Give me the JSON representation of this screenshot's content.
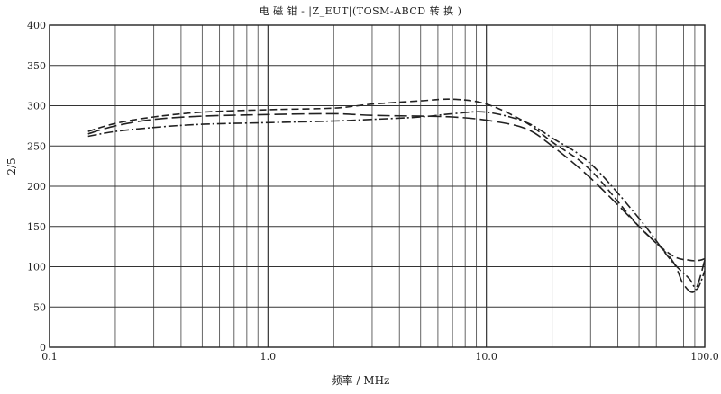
{
  "chart_data": {
    "type": "line",
    "title": "电 磁 钳 - |Z_EUT|(TOSM-ABCD      转 换 )",
    "xlabel": "频率 / MHz",
    "ylabel": "2/5",
    "x_scale": "log",
    "xlim": [
      0.1,
      100.0
    ],
    "ylim": [
      0,
      400
    ],
    "grid": true,
    "x_ticks": [
      {
        "value": 0.1,
        "label": "0.1"
      },
      {
        "value": 1.0,
        "label": "1.0"
      },
      {
        "value": 10.0,
        "label": "10.0"
      },
      {
        "value": 100.0,
        "label": "100.0"
      }
    ],
    "y_ticks": [
      {
        "value": 0,
        "label": "0"
      },
      {
        "value": 50,
        "label": "50"
      },
      {
        "value": 100,
        "label": "100"
      },
      {
        "value": 150,
        "label": "150"
      },
      {
        "value": 200,
        "label": "200"
      },
      {
        "value": 250,
        "label": "250"
      },
      {
        "value": 300,
        "label": "300"
      },
      {
        "value": 350,
        "label": "350"
      },
      {
        "value": 400,
        "label": "400"
      }
    ],
    "series": [
      {
        "dash": "dash",
        "color": "#222222",
        "x": [
          0.15,
          0.2,
          0.3,
          0.5,
          1.0,
          2.0,
          3.0,
          5.0,
          7.0,
          10.0,
          15.0,
          20.0,
          30.0,
          50.0,
          70.0,
          85.0,
          95.0,
          100.0
        ],
        "y": [
          268,
          278,
          286,
          292,
          295,
          297,
          302,
          306,
          308,
          302,
          280,
          255,
          220,
          150,
          115,
          108,
          108,
          110
        ]
      },
      {
        "dash": "dash-dot",
        "color": "#222222",
        "x": [
          0.15,
          0.2,
          0.3,
          0.5,
          1.0,
          2.0,
          3.0,
          5.0,
          7.0,
          10.0,
          15.0,
          20.0,
          30.0,
          50.0,
          70.0,
          85.0,
          92.0,
          100.0
        ],
        "y": [
          262,
          268,
          273,
          277,
          279,
          281,
          283,
          286,
          290,
          292,
          280,
          260,
          228,
          160,
          108,
          85,
          72,
          95
        ]
      },
      {
        "dash": "long-dash",
        "color": "#222222",
        "x": [
          0.15,
          0.2,
          0.3,
          0.5,
          1.0,
          2.0,
          3.0,
          5.0,
          7.0,
          10.0,
          15.0,
          20.0,
          30.0,
          50.0,
          70.0,
          80.0,
          90.0,
          100.0
        ],
        "y": [
          265,
          275,
          283,
          287,
          289,
          290,
          288,
          287,
          286,
          282,
          272,
          250,
          210,
          150,
          110,
          78,
          70,
          108
        ]
      }
    ]
  }
}
